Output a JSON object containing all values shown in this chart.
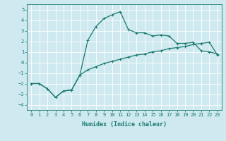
{
  "xlabel": "Humidex (Indice chaleur)",
  "ylabel": "",
  "bg_color": "#cfe9f0",
  "grid_color": "#ffffff",
  "line_color": "#1a7a6e",
  "xlim": [
    -0.5,
    23.5
  ],
  "ylim": [
    -4.5,
    5.5
  ],
  "xticks": [
    0,
    1,
    2,
    3,
    4,
    5,
    6,
    7,
    8,
    9,
    10,
    11,
    12,
    13,
    14,
    15,
    16,
    17,
    18,
    19,
    20,
    21,
    22,
    23
  ],
  "yticks": [
    -4,
    -3,
    -2,
    -1,
    0,
    1,
    2,
    3,
    4,
    5
  ],
  "curve1_x": [
    0,
    1,
    2,
    3,
    4,
    5,
    6,
    7,
    8,
    9,
    10,
    11,
    12,
    13,
    14,
    15,
    16,
    17,
    18,
    19,
    20,
    21,
    22,
    23
  ],
  "curve1_y": [
    -2.0,
    -2.0,
    -2.5,
    -3.3,
    -2.7,
    -2.6,
    -1.2,
    2.1,
    3.4,
    4.15,
    4.5,
    4.8,
    3.1,
    2.8,
    2.8,
    2.5,
    2.6,
    2.5,
    1.8,
    1.8,
    1.9,
    1.1,
    1.0,
    0.8
  ],
  "curve2_x": [
    0,
    1,
    2,
    3,
    4,
    5,
    6,
    7,
    8,
    9,
    10,
    11,
    12,
    13,
    14,
    15,
    16,
    17,
    18,
    19,
    20,
    21,
    22,
    23
  ],
  "curve2_y": [
    -2.0,
    -2.0,
    -2.5,
    -3.3,
    -2.7,
    -2.6,
    -1.2,
    -0.7,
    -0.4,
    -0.1,
    0.1,
    0.3,
    0.5,
    0.7,
    0.8,
    1.0,
    1.1,
    1.3,
    1.4,
    1.5,
    1.7,
    1.8,
    1.9,
    0.7
  ],
  "figsize": [
    3.2,
    2.0
  ],
  "dpi": 100,
  "xlabel_fontsize": 6,
  "tick_fontsize": 5,
  "linewidth": 0.9,
  "markersize": 2.5,
  "markeredgewidth": 0.7
}
